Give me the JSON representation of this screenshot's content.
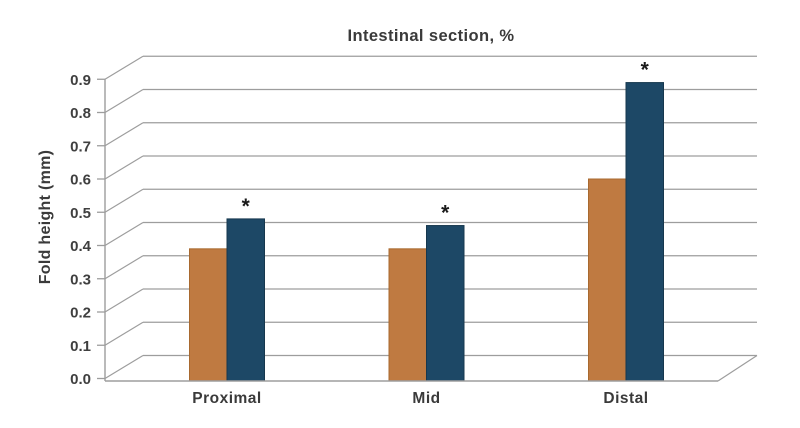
{
  "chart_data": {
    "type": "bar",
    "style": "pseudo-3d-perspective",
    "title": "Intestinal section, %",
    "ylabel": "Fold height (mm)",
    "xlabel": "",
    "categories": [
      "Proximal",
      "Mid",
      "Distal"
    ],
    "series": [
      {
        "id": "series-orange",
        "color": "#bf7a41",
        "stroke": "#a8692f",
        "values": [
          0.39,
          0.39,
          0.6
        ]
      },
      {
        "id": "series-blue",
        "color": "#1d4866",
        "stroke": "#16374d",
        "values": [
          0.48,
          0.46,
          0.89
        ]
      }
    ],
    "significance": {
      "marker": "*",
      "applies_to": "series-blue",
      "categories": [
        "Proximal",
        "Mid",
        "Distal"
      ]
    },
    "ylim": [
      0.0,
      0.9
    ],
    "ytick_step": 0.1,
    "ytick_labels": [
      "0.0",
      "0.1",
      "0.2",
      "0.3",
      "0.4",
      "0.5",
      "0.6",
      "0.7",
      "0.8",
      "0.9"
    ],
    "grid": true,
    "legend": "none",
    "colors": {
      "grid": "#9d9d9d",
      "axis": "#9d9d9d",
      "text": "#3a3a3a",
      "marker": "#1a1a1a"
    }
  }
}
